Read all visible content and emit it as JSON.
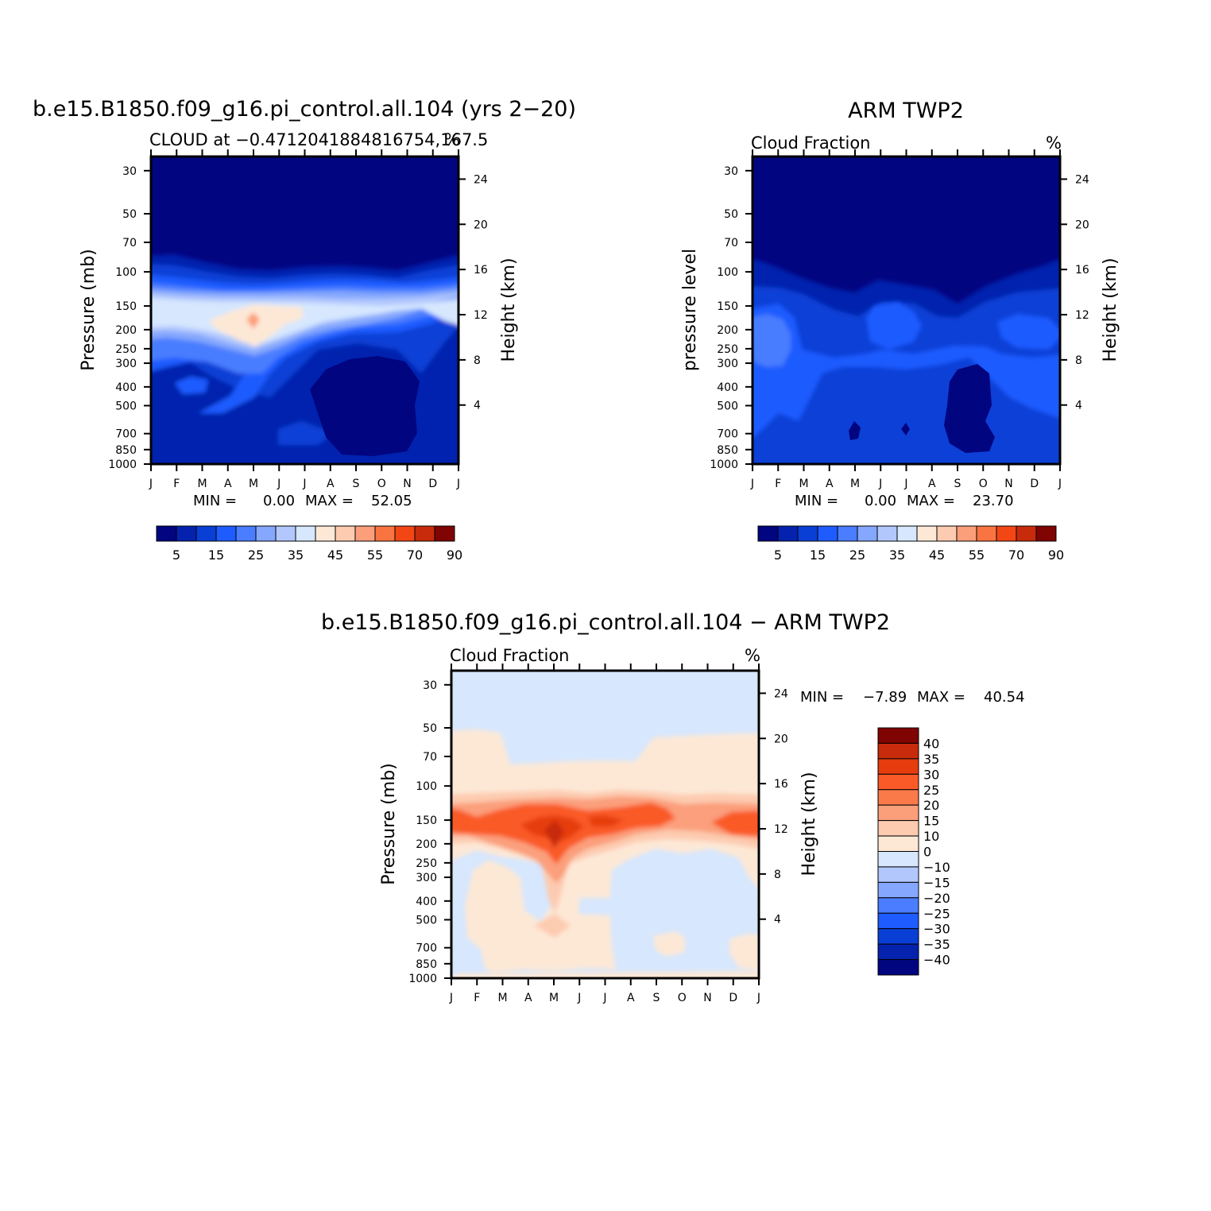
{
  "chart_data": [
    {
      "type": "contour",
      "title": "b.e15.B1850.f09_g16.pi_control.all.104 (yrs 2−20)",
      "subtitle_left": "CLOUD at −0.4712041884816754,167.5",
      "subtitle_right": "%",
      "ylabel_left": "Pressure (mb)",
      "ylabel_right": "Height (km)",
      "x_ticks": [
        "J",
        "F",
        "M",
        "A",
        "M",
        "J",
        "J",
        "A",
        "S",
        "O",
        "N",
        "D",
        "J"
      ],
      "y_ticks": [
        "30",
        "50",
        "70",
        "100",
        "150",
        "200",
        "250",
        "300",
        "400",
        "500",
        "700",
        "850",
        "1000"
      ],
      "y_ticks_right": [
        "24",
        "20",
        "16",
        "12",
        "8",
        "4"
      ],
      "min_label": "MIN =",
      "min_value": "0.00",
      "max_label": "MAX =",
      "max_value": "52.05",
      "colorbar_labels": [
        "5",
        "15",
        "25",
        "35",
        "45",
        "55",
        "70",
        "90"
      ],
      "colorbar_colors": [
        "#020580",
        "#0522ae",
        "#0a3fd6",
        "#1f5cff",
        "#4a7dff",
        "#85a7fd",
        "#b2c8fd",
        "#d6e7fe",
        "#fde8d6",
        "#fdcbb0",
        "#fb9f7b",
        "#fa7442",
        "#f34615",
        "#c72b0b",
        "#800402"
      ],
      "levels": [
        {
          "value": 5,
          "color": "#0522ae"
        },
        {
          "value": 10,
          "color": "#0a3fd6"
        },
        {
          "value": 15,
          "color": "#1f5cff"
        },
        {
          "value": 20,
          "color": "#4a7dff"
        },
        {
          "value": 25,
          "color": "#85a7fd"
        },
        {
          "value": 35,
          "color": "#b2c8fd"
        },
        {
          "value": 40,
          "color": "#d6e7fe"
        },
        {
          "value": 45,
          "color": "#fde8d6"
        },
        {
          "value": 50,
          "color": "#fb9f7b"
        }
      ]
    },
    {
      "type": "contour",
      "title": "ARM TWP2",
      "subtitle_left": "Cloud Fraction",
      "subtitle_right": "%",
      "ylabel_left": "pressure level",
      "ylabel_right": "Height (km)",
      "x_ticks": [
        "J",
        "F",
        "M",
        "A",
        "M",
        "J",
        "J",
        "A",
        "S",
        "O",
        "N",
        "D",
        "J"
      ],
      "y_ticks": [
        "30",
        "50",
        "70",
        "100",
        "150",
        "200",
        "250",
        "300",
        "400",
        "500",
        "700",
        "850",
        "1000"
      ],
      "y_ticks_right": [
        "24",
        "20",
        "16",
        "12",
        "8",
        "4"
      ],
      "min_label": "MIN =",
      "min_value": "0.00",
      "max_label": "MAX =",
      "max_value": "23.70",
      "colorbar_labels": [
        "5",
        "15",
        "25",
        "35",
        "45",
        "55",
        "70",
        "90"
      ],
      "colorbar_colors": [
        "#020580",
        "#0522ae",
        "#0a3fd6",
        "#1f5cff",
        "#4a7dff",
        "#85a7fd",
        "#b2c8fd",
        "#d6e7fe",
        "#fde8d6",
        "#fdcbb0",
        "#fb9f7b",
        "#fa7442",
        "#f34615",
        "#c72b0b",
        "#800402"
      ],
      "levels": [
        {
          "value": 5,
          "color": "#0522ae"
        },
        {
          "value": 10,
          "color": "#0a3fd6"
        },
        {
          "value": 15,
          "color": "#1f5cff"
        },
        {
          "value": 20,
          "color": "#4a7dff"
        }
      ]
    },
    {
      "type": "contour",
      "title": "b.e15.B1850.f09_g16.pi_control.all.104 − ARM TWP2",
      "subtitle_left": "Cloud Fraction",
      "subtitle_right": "%",
      "ylabel_left": "Pressure (mb)",
      "ylabel_right": "Height (km)",
      "x_ticks": [
        "J",
        "F",
        "M",
        "A",
        "M",
        "J",
        "J",
        "A",
        "S",
        "O",
        "N",
        "D",
        "J"
      ],
      "y_ticks": [
        "30",
        "50",
        "70",
        "100",
        "150",
        "200",
        "250",
        "300",
        "400",
        "500",
        "700",
        "850",
        "1000"
      ],
      "y_ticks_right": [
        "24",
        "20",
        "16",
        "12",
        "8",
        "4"
      ],
      "min_label": "MIN =",
      "min_value": "−7.89",
      "max_label": "MAX =",
      "max_value": "40.54",
      "colorbar_labels": [
        "40",
        "35",
        "30",
        "25",
        "20",
        "15",
        "10",
        "0",
        "−10",
        "−15",
        "−20",
        "−25",
        "−30",
        "−35",
        "−40"
      ],
      "colorbar_colors": [
        "#800402",
        "#c72b0b",
        "#e63c0e",
        "#fa5a28",
        "#fb7a4a",
        "#fb9f7b",
        "#fdcbb0",
        "#fde8d6",
        "#d6e7fe",
        "#b2c8fd",
        "#85a7fd",
        "#4a7dff",
        "#1f5cff",
        "#0a3fd6",
        "#0522ae",
        "#020580"
      ],
      "levels": [
        {
          "value": 0,
          "color": "#fde8d6"
        },
        {
          "value": 10,
          "color": "#fdcbb0"
        },
        {
          "value": 15,
          "color": "#fb9f7b"
        },
        {
          "value": 20,
          "color": "#fa5a28"
        },
        {
          "value": 30,
          "color": "#e63c0e"
        },
        {
          "value": 35,
          "color": "#c72b0b"
        }
      ]
    }
  ]
}
